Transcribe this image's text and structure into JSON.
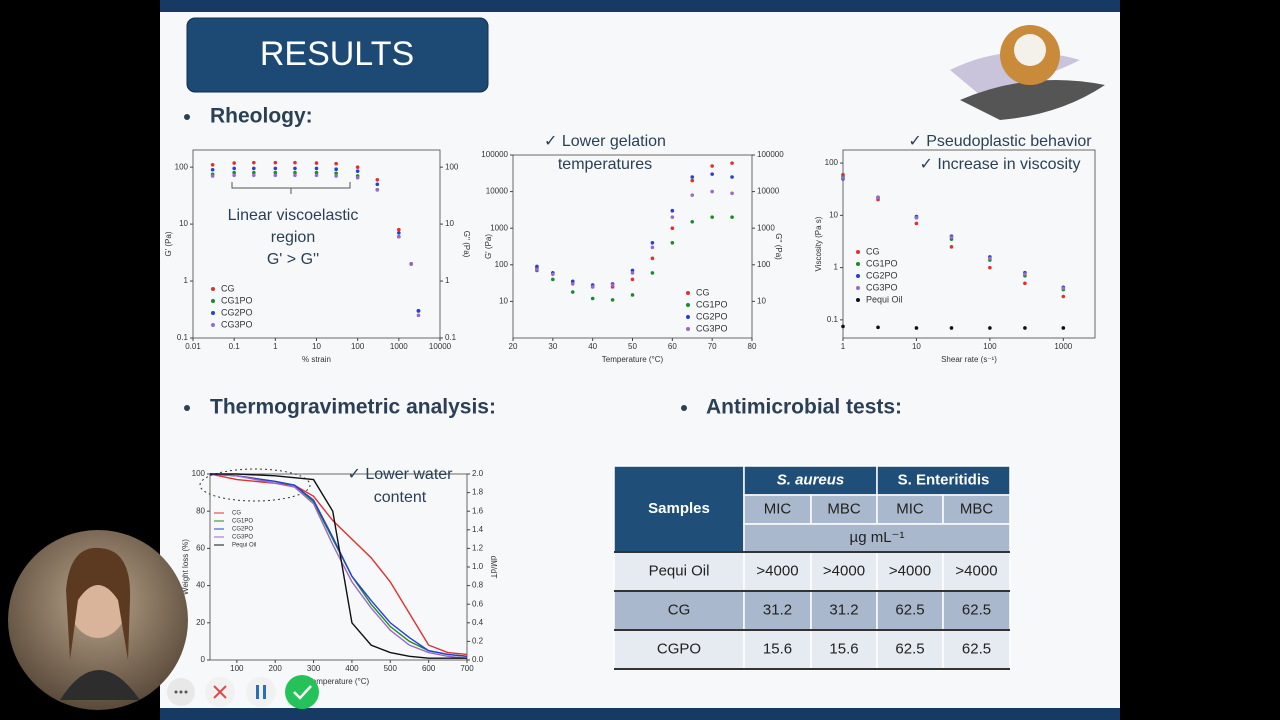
{
  "slide": {
    "title": "RESULTS",
    "sections": [
      "Rheology:",
      "Thermogravimetric analysis:",
      "Antimicrobial tests:"
    ]
  },
  "chart_data": [
    {
      "type": "scatter",
      "xlog": true,
      "ylog": true,
      "xlabel": "% strain",
      "ylabel": "G' (Pa)",
      "y2label": "G'' (Pa)",
      "annotations": [
        "Linear viscoelastic",
        "region",
        "G' > G''"
      ],
      "xlim": [
        0.01,
        10000
      ],
      "xticks": [
        0.01,
        0.1,
        1,
        10,
        100,
        1000,
        10000
      ],
      "ylim": [
        0.1,
        200
      ],
      "yticks": [
        0.1,
        1,
        10,
        100
      ],
      "y2lim": [
        0.1,
        200
      ],
      "y2ticks": [
        0.1,
        1,
        10,
        100
      ],
      "x": [
        0.03,
        0.1,
        0.3,
        1,
        3,
        10,
        30,
        100,
        300,
        1000,
        2000,
        3000
      ],
      "series": [
        {
          "name": "CG",
          "color": "#e03030",
          "values": [
            110,
            118,
            120,
            120,
            120,
            118,
            115,
            100,
            60,
            8,
            2,
            0.3
          ]
        },
        {
          "name": "CG1PO",
          "color": "#1a8a2a",
          "values": [
            75,
            80,
            80,
            80,
            80,
            80,
            78,
            70,
            40,
            6,
            2,
            0.3
          ]
        },
        {
          "name": "CG2PO",
          "color": "#2a3fd0",
          "values": [
            90,
            95,
            95,
            95,
            95,
            95,
            92,
            85,
            50,
            7,
            2,
            0.3
          ]
        },
        {
          "name": "CG3PO",
          "color": "#9a6ac8",
          "values": [
            70,
            72,
            72,
            72,
            72,
            72,
            70,
            65,
            40,
            6,
            2,
            0.25
          ]
        }
      ]
    },
    {
      "type": "scatter",
      "xlog": false,
      "ylog": true,
      "xlabel": "Temperature (°C)",
      "ylabel": "G' (Pa)",
      "y2label": "G'' (Pa)",
      "annotations": [
        "✓  Lower gelation",
        "temperatures"
      ],
      "xlim": [
        20,
        80
      ],
      "xticks": [
        20,
        30,
        40,
        50,
        60,
        70,
        80
      ],
      "ylim": [
        1,
        100000
      ],
      "yticks": [
        10,
        100,
        1000,
        10000,
        100000
      ],
      "y2lim": [
        1,
        100000
      ],
      "y2ticks": [
        10,
        100,
        1000,
        10000,
        100000
      ],
      "x": [
        26,
        30,
        35,
        40,
        45,
        50,
        55,
        60,
        65,
        70,
        75
      ],
      "series": [
        {
          "name": "CG",
          "color": "#e03030",
          "values": [
            80,
            60,
            35,
            25,
            25,
            40,
            150,
            1000,
            20000,
            50000,
            60000
          ]
        },
        {
          "name": "CG1PO",
          "color": "#1a8a2a",
          "values": [
            70,
            40,
            18,
            12,
            11,
            15,
            60,
            400,
            1500,
            2000,
            2000
          ]
        },
        {
          "name": "CG2PO",
          "color": "#2a3fd0",
          "values": [
            90,
            60,
            35,
            28,
            30,
            70,
            400,
            3000,
            25000,
            30000,
            25000
          ]
        },
        {
          "name": "CG3PO",
          "color": "#9a6ac8",
          "values": [
            75,
            55,
            30,
            25,
            28,
            60,
            300,
            2000,
            8000,
            10000,
            9000
          ]
        }
      ]
    },
    {
      "type": "scatter",
      "xlog": true,
      "ylog": true,
      "xlabel": "Shear rate (s⁻¹)",
      "ylabel": "Viscosity (Pa s)",
      "annotations": [
        "✓  Pseudoplastic behavior",
        "✓  Increase in viscosity"
      ],
      "xlim": [
        1,
        2700
      ],
      "xticks": [
        1,
        10,
        100,
        1000
      ],
      "ylim": [
        0.045,
        178
      ],
      "yticks": [
        0.1,
        1,
        10,
        100
      ],
      "x": [
        1,
        3,
        10,
        30,
        100,
        300,
        1000
      ],
      "series": [
        {
          "name": "CG",
          "color": "#e03030",
          "values": [
            60,
            20,
            7,
            2.5,
            1,
            0.5,
            0.28
          ]
        },
        {
          "name": "CG1PO",
          "color": "#1a8a2a",
          "values": [
            55,
            22,
            9,
            3.5,
            1.4,
            0.7,
            0.38
          ]
        },
        {
          "name": "CG2PO",
          "color": "#2a3fd0",
          "values": [
            50,
            22,
            9.5,
            4,
            1.6,
            0.8,
            0.42
          ]
        },
        {
          "name": "CG3PO",
          "color": "#9a6ac8",
          "values": [
            52,
            22,
            9,
            3.8,
            1.5,
            0.75,
            0.4
          ]
        },
        {
          "name": "Pequi Oil",
          "color": "#111111",
          "values": [
            0.075,
            0.072,
            0.07,
            0.07,
            0.07,
            0.07,
            0.07
          ]
        }
      ]
    },
    {
      "type": "line",
      "xlog": false,
      "ylog": false,
      "xlabel": "Temperature (°C)",
      "ylabel": "Weight loss (%)",
      "y2label": "dM/dT",
      "annotations": [
        "✓  Lower water",
        "content"
      ],
      "xlim": [
        30,
        700
      ],
      "xticks": [
        100,
        200,
        300,
        400,
        500,
        600,
        700
      ],
      "ylim": [
        0,
        100
      ],
      "yticks": [
        0,
        20,
        40,
        60,
        80,
        100
      ],
      "y2lim": [
        0,
        2
      ],
      "y2ticks": [
        {
          "value": 0,
          "label": "0.0"
        },
        0.2,
        0.4,
        0.6,
        0.8,
        {
          "value": 1,
          "label": "1.0"
        },
        1.2,
        1.4,
        1.6,
        1.8,
        {
          "value": 2,
          "label": "2.0"
        }
      ],
      "x": [
        30,
        100,
        200,
        250,
        300,
        350,
        400,
        450,
        500,
        550,
        600,
        650,
        700
      ],
      "series": [
        {
          "name": "CG",
          "color": "#e03030",
          "values": [
            100,
            97,
            95,
            94,
            88,
            75,
            65,
            55,
            42,
            25,
            8,
            4,
            3
          ]
        },
        {
          "name": "CG1PO",
          "color": "#1a8a2a",
          "values": [
            100,
            99,
            96,
            94,
            85,
            65,
            45,
            30,
            18,
            10,
            5,
            3,
            2
          ]
        },
        {
          "name": "CG2PO",
          "color": "#2a3fd0",
          "values": [
            100,
            99,
            96,
            94,
            86,
            66,
            45,
            32,
            20,
            12,
            5,
            3,
            2
          ]
        },
        {
          "name": "CG3PO",
          "color": "#9a6ac8",
          "values": [
            100,
            99,
            95,
            93,
            84,
            62,
            42,
            28,
            16,
            8,
            4,
            2,
            1
          ]
        },
        {
          "name": "Pequi Oil",
          "color": "#111111",
          "values": [
            100,
            100,
            99,
            98,
            97,
            80,
            20,
            8,
            4,
            2,
            1,
            1,
            1
          ]
        }
      ]
    }
  ],
  "table": {
    "header": [
      "Samples",
      "S. aureus",
      "S. Enteritidis"
    ],
    "subheader": [
      "MIC",
      "MBC",
      "MIC",
      "MBC"
    ],
    "unit": "µg mL⁻¹",
    "rows": [
      [
        "Pequi Oil",
        ">4000",
        ">4000",
        ">4000",
        ">4000"
      ],
      [
        "CG",
        "31.2",
        "31.2",
        "62.5",
        "62.5"
      ],
      [
        "CGPO",
        "15.6",
        "15.6",
        "62.5",
        "62.5"
      ]
    ]
  }
}
